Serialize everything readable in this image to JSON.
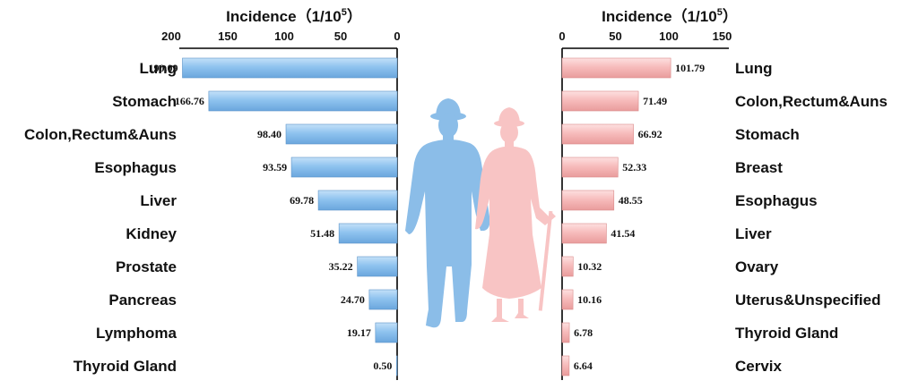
{
  "chart_data": [
    {
      "type": "bar",
      "orientation": "horizontal",
      "direction": "leftward",
      "group": "male",
      "title": "Incidence（1/10",
      "title_sup": "5",
      "title_close": "）",
      "xlabel": "Incidence（1/10^5）",
      "xlim": [
        0,
        200
      ],
      "xticks": [
        200,
        150,
        100,
        50,
        0
      ],
      "color": "#8fc3ef",
      "categories": [
        "Lung",
        "Stomach",
        "Colon,Rectum&Auns",
        "Esophagus",
        "Liver",
        "Kidney",
        "Prostate",
        "Pancreas",
        "Lymphoma",
        "Thyroid Gland"
      ],
      "values": [
        190.09,
        166.76,
        98.4,
        93.59,
        69.78,
        51.48,
        35.22,
        24.7,
        19.17,
        0.5
      ],
      "value_labels": [
        "190.09",
        "166.76",
        "98.40",
        "93.59",
        "69.78",
        "51.48",
        "35.22",
        "24.70",
        "19.17",
        "0.50"
      ]
    },
    {
      "type": "bar",
      "orientation": "horizontal",
      "direction": "rightward",
      "group": "female",
      "title": "Incidence（1/10",
      "title_sup": "5",
      "title_close": "）",
      "xlabel": "Incidence（1/10^5）",
      "xlim": [
        0,
        150
      ],
      "xticks": [
        0,
        50,
        100,
        150
      ],
      "color": "#f7bcbc",
      "categories": [
        "Lung",
        "Colon,Rectum&Auns",
        "Stomach",
        "Breast",
        "Esophagus",
        "Liver",
        "Ovary",
        "Uterus&Unspecified",
        "Thyroid Gland",
        "Cervix"
      ],
      "values": [
        101.79,
        71.49,
        66.92,
        52.33,
        48.55,
        41.54,
        10.32,
        10.16,
        6.78,
        6.64
      ],
      "value_labels": [
        "101.79",
        "71.49",
        "66.92",
        "52.33",
        "48.55",
        "41.54",
        "10.32",
        "10.16",
        "6.78",
        "6.64"
      ]
    }
  ],
  "colors": {
    "male": "#8fc3ef",
    "female": "#f7bcbc",
    "male_silhouette": "#8bbde8",
    "female_silhouette": "#f8c4c4"
  }
}
